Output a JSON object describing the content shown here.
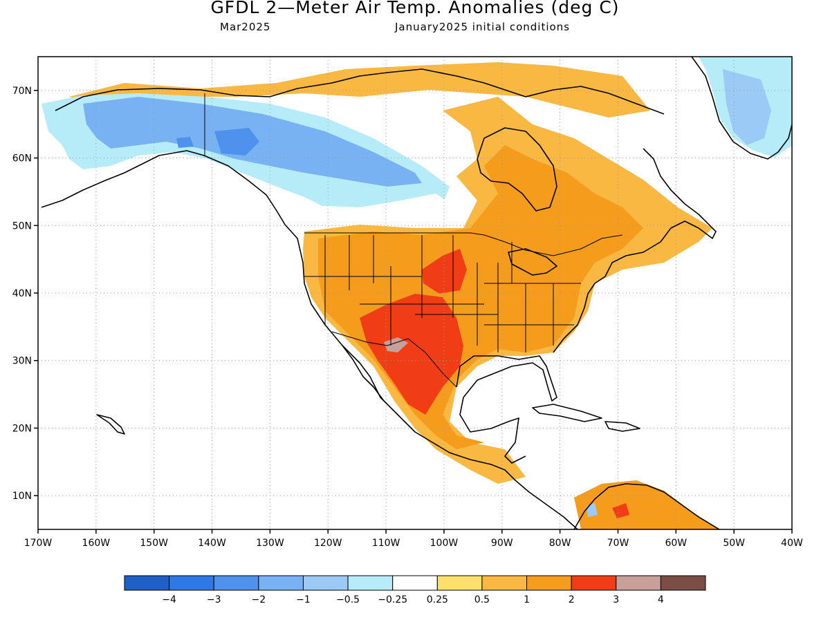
{
  "header": {
    "title": "GFDL 2—Meter Air Temp. Anomalies (deg C)",
    "valid_month": "Mar2025",
    "initial_conditions": "January2025 initial conditions"
  },
  "axes": {
    "latitude_labels": [
      "70N",
      "60N",
      "50N",
      "40N",
      "30N",
      "20N",
      "10N"
    ],
    "latitude_values": [
      70,
      60,
      50,
      40,
      30,
      20,
      10
    ],
    "longitude_labels": [
      "170W",
      "160W",
      "150W",
      "140W",
      "130W",
      "120W",
      "110W",
      "100W",
      "90W",
      "80W",
      "70W",
      "60W",
      "50W",
      "40W"
    ],
    "longitude_values": [
      -170,
      -160,
      -150,
      -140,
      -130,
      -120,
      -110,
      -100,
      -90,
      -80,
      -70,
      -60,
      -50,
      -40
    ],
    "lon_range": [
      -170,
      -40
    ],
    "lat_range": [
      5,
      75
    ],
    "grid": "dotted"
  },
  "legend": {
    "colors": [
      "#1f5fc8",
      "#2f78e8",
      "#4e92ee",
      "#79b2f2",
      "#9ccaf6",
      "#b6ecf8",
      "#ffffff",
      "#fde06c",
      "#f9b842",
      "#f59c1c",
      "#f13d16",
      "#c8a09a",
      "#7a4e44"
    ],
    "labels": [
      "−4",
      "−3",
      "−2",
      "−1",
      "−0.5",
      "−0.25",
      "0.25",
      "0.5",
      "1",
      "2",
      "3",
      "4"
    ]
  },
  "anomaly_regions": [
    {
      "region": "Alaska and northwestern Canada",
      "value": "-1 to -2"
    },
    {
      "region": "Southwest US and northern Mexico",
      "value": "2 to 3"
    },
    {
      "region": "Eastern US and eastern Canada",
      "value": "1 to 2"
    },
    {
      "region": "Greenland",
      "value": "-0.5 to -1"
    }
  ]
}
